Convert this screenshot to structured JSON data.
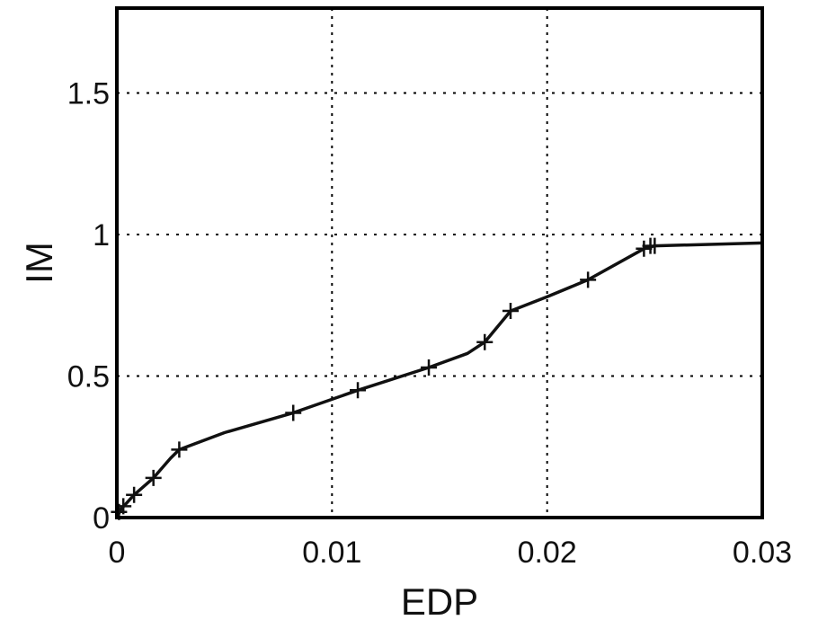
{
  "chart_data": {
    "type": "line",
    "xlabel": "EDP",
    "ylabel": "IM",
    "xlim": [
      0,
      0.03
    ],
    "ylim": [
      0,
      1.8
    ],
    "grid": true,
    "grid_style": "dotted",
    "x_ticks": [
      0,
      0.01,
      0.02,
      0.03
    ],
    "x_tick_labels": [
      "0",
      "0.01",
      "0.02",
      "0.03"
    ],
    "y_ticks": [
      0,
      0.5,
      1,
      1.5
    ],
    "y_tick_labels": [
      "0",
      "0.5",
      "1",
      "1.5"
    ],
    "series": [
      {
        "color": "#111111",
        "marker": "plus",
        "points": [
          {
            "x": 0.0,
            "y": 0.0
          },
          {
            "x": 0.0002,
            "y": 0.03
          },
          {
            "x": 0.0008,
            "y": 0.08
          },
          {
            "x": 0.0017,
            "y": 0.14
          },
          {
            "x": 0.0025,
            "y": 0.21
          },
          {
            "x": 0.0029,
            "y": 0.24
          },
          {
            "x": 0.005,
            "y": 0.3
          },
          {
            "x": 0.0082,
            "y": 0.37
          },
          {
            "x": 0.0112,
            "y": 0.45
          },
          {
            "x": 0.0145,
            "y": 0.53
          },
          {
            "x": 0.0163,
            "y": 0.58
          },
          {
            "x": 0.0171,
            "y": 0.62
          },
          {
            "x": 0.0183,
            "y": 0.73
          },
          {
            "x": 0.02,
            "y": 0.78
          },
          {
            "x": 0.0219,
            "y": 0.84
          },
          {
            "x": 0.0245,
            "y": 0.95
          },
          {
            "x": 0.025,
            "y": 0.96
          },
          {
            "x": 0.03,
            "y": 0.97
          }
        ],
        "markers": [
          {
            "x": 0.0001,
            "y": 0.02
          },
          {
            "x": 0.0003,
            "y": 0.04
          },
          {
            "x": 0.0008,
            "y": 0.08
          },
          {
            "x": 0.0017,
            "y": 0.14
          },
          {
            "x": 0.0029,
            "y": 0.24
          },
          {
            "x": 0.0082,
            "y": 0.37
          },
          {
            "x": 0.0112,
            "y": 0.45
          },
          {
            "x": 0.0145,
            "y": 0.53
          },
          {
            "x": 0.0171,
            "y": 0.62
          },
          {
            "x": 0.0183,
            "y": 0.73
          },
          {
            "x": 0.0219,
            "y": 0.84
          },
          {
            "x": 0.0245,
            "y": 0.95
          },
          {
            "x": 0.0248,
            "y": 0.96
          },
          {
            "x": 0.025,
            "y": 0.96
          }
        ]
      }
    ]
  }
}
